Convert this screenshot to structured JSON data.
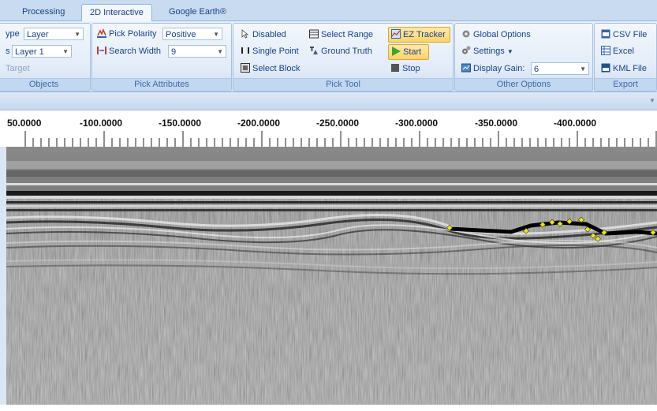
{
  "tabs": [
    {
      "label": "Processing",
      "active": false
    },
    {
      "label": "2D Interactive",
      "active": true
    },
    {
      "label": "Google Earth®",
      "active": false
    }
  ],
  "objects": {
    "type_label": "ype",
    "type_value": "Layer",
    "layer_label": "s",
    "layer_value": "Layer 1",
    "target_label": "Target",
    "group_label": "Objects"
  },
  "pick_attributes": {
    "polarity_label": "Pick Polarity",
    "polarity_value": "Positive",
    "width_label": "Search Width",
    "width_value": "9",
    "group_label": "Pick Attributes"
  },
  "pick_tool": {
    "disabled": "Disabled",
    "select_range": "Select Range",
    "single_point": "Single Point",
    "ground_truth": "Ground Truth",
    "select_block": "Select Block",
    "ez_tracker": "EZ Tracker",
    "start": "Start",
    "stop": "Stop",
    "group_label": "Pick Tool"
  },
  "other_options": {
    "global_options": "Global Options",
    "settings": "Settings",
    "display_gain_label": "Display Gain:",
    "display_gain_value": "6",
    "group_label": "Other Options"
  },
  "export": {
    "csv": "CSV File",
    "excel": "Excel",
    "kml": "KML File",
    "group_label": "Export"
  },
  "ruler": {
    "labels": [
      "50.0000",
      "-100.0000",
      "-150.0000",
      "-200.0000",
      "-250.0000",
      "-300.0000",
      "-350.0000",
      "-400.0000"
    ]
  },
  "colors": {
    "ribbon_bg": "#dbe6f4",
    "accent": "#15428b",
    "pick_marker": "#f2e600",
    "active_button": "#ffd465"
  }
}
